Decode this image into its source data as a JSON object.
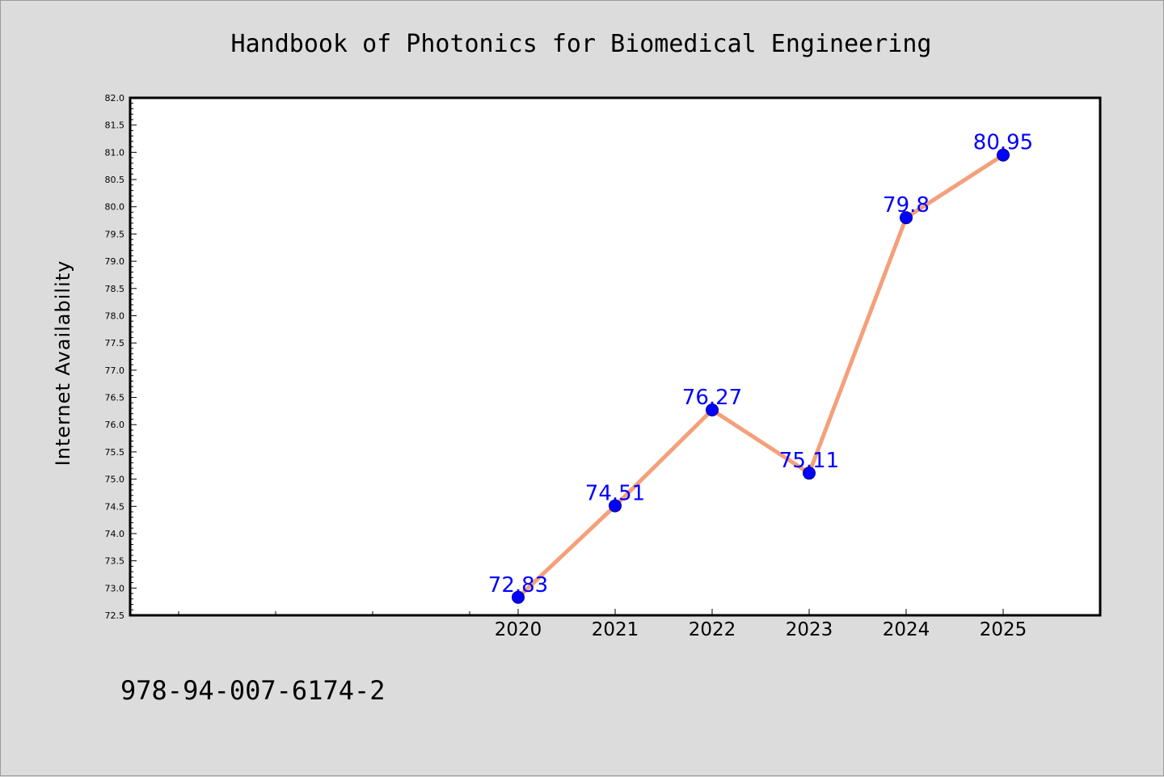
{
  "chart_data": {
    "type": "line",
    "title": "Handbook of Photonics for Biomedical Engineering",
    "xlabel": "",
    "ylabel": "Internet Availability",
    "x": [
      "2020",
      "2021",
      "2022",
      "2023",
      "2024",
      "2025"
    ],
    "values": [
      72.83,
      74.51,
      76.27,
      75.11,
      79.8,
      80.95
    ],
    "data_labels": [
      "72.83",
      "74.51",
      "76.27",
      "75.11",
      "79.8",
      "80.95"
    ],
    "ylim": [
      72.5,
      82.0
    ],
    "ytick_step": 0.5,
    "xlim_slots": 10,
    "grid": false,
    "line_color": "#f4a07a",
    "marker_color": "#0000ff",
    "label_color": "#0000ff"
  },
  "footer": {
    "isbn": "978-94-007-6174-2"
  }
}
